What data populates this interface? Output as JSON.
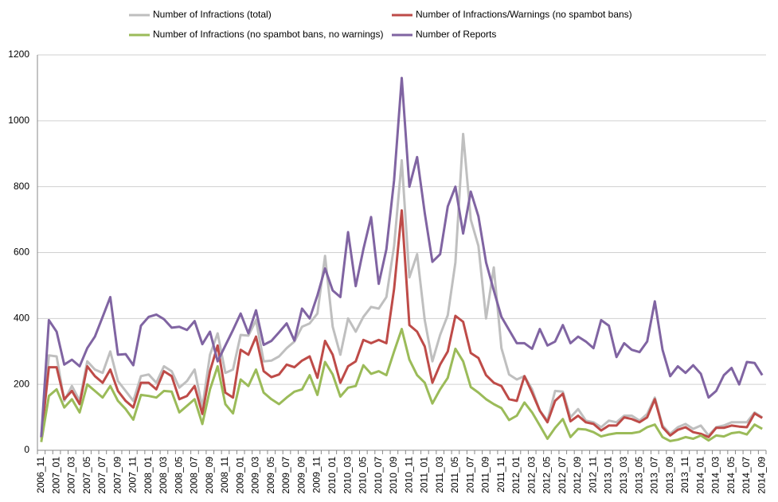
{
  "chart_data": {
    "type": "line",
    "categories": [
      "2006_11",
      null,
      "2007_01",
      null,
      "2007_03",
      null,
      "2007_05",
      null,
      "2007_07",
      null,
      "2007_09",
      null,
      "2007_11",
      null,
      "2008_01",
      null,
      "2008_03",
      null,
      "2008_05",
      null,
      "2008_07",
      null,
      "2008_09",
      null,
      "2008_11",
      null,
      "2009_01",
      null,
      "2009_03",
      null,
      "2009_05",
      null,
      "2009_07",
      null,
      "2009_09",
      null,
      "2009_11",
      null,
      "2010_01",
      null,
      "2010_03",
      null,
      "2010_05",
      null,
      "2010_07",
      null,
      "2010_09",
      null,
      "2010_11",
      null,
      "2011_01",
      null,
      "2011_03",
      null,
      "2011_05",
      null,
      "2011_07",
      null,
      "2011_09",
      null,
      "2011_11",
      null,
      "2012_01",
      null,
      "2012_03",
      null,
      "2012_05",
      null,
      "2012_07",
      null,
      "2012_09",
      null,
      "2012_11",
      null,
      "2013_01",
      null,
      "2013_03",
      null,
      "2013_05",
      null,
      "2013_07",
      null,
      "2013_09",
      null,
      "2013_11",
      null,
      "2014_01",
      null,
      "2014_03",
      null,
      "2014_05",
      null,
      "2014_07",
      null,
      "2014_09"
    ],
    "series": [
      {
        "name": "Number of Infractions (total)",
        "color": "#bfbfbf",
        "values": [
          35,
          288,
          285,
          150,
          195,
          150,
          270,
          245,
          235,
          300,
          210,
          180,
          150,
          225,
          230,
          205,
          255,
          240,
          190,
          210,
          245,
          130,
          290,
          355,
          235,
          245,
          350,
          348,
          395,
          270,
          272,
          285,
          310,
          330,
          375,
          385,
          415,
          590,
          375,
          290,
          400,
          360,
          405,
          435,
          430,
          465,
          620,
          880,
          525,
          595,
          395,
          270,
          350,
          410,
          570,
          960,
          700,
          620,
          400,
          555,
          310,
          230,
          215,
          225,
          185,
          120,
          90,
          180,
          178,
          100,
          125,
          90,
          85,
          70,
          90,
          85,
          105,
          105,
          90,
          110,
          160,
          75,
          50,
          70,
          80,
          65,
          75,
          45,
          70,
          75,
          85,
          85,
          85,
          115,
          100
        ]
      },
      {
        "name": "Number of Infractions/Warnings (no spambot bans)",
        "color": "#be4b48",
        "values": [
          40,
          252,
          252,
          155,
          180,
          140,
          255,
          225,
          205,
          245,
          180,
          150,
          130,
          205,
          205,
          185,
          240,
          225,
          155,
          165,
          195,
          110,
          240,
          318,
          175,
          160,
          305,
          290,
          345,
          240,
          222,
          230,
          260,
          252,
          272,
          285,
          220,
          332,
          290,
          205,
          255,
          270,
          335,
          325,
          335,
          325,
          490,
          728,
          380,
          360,
          315,
          205,
          260,
          300,
          408,
          390,
          295,
          280,
          228,
          205,
          195,
          155,
          150,
          225,
          175,
          120,
          85,
          150,
          172,
          88,
          105,
          85,
          80,
          60,
          75,
          75,
          100,
          95,
          85,
          100,
          155,
          70,
          45,
          62,
          70,
          55,
          50,
          40,
          68,
          68,
          75,
          72,
          70,
          112,
          98
        ]
      },
      {
        "name": "Number of Infractions (no spambot bans, no warnings)",
        "color": "#9bbb59",
        "values": [
          25,
          165,
          185,
          130,
          155,
          115,
          200,
          180,
          160,
          195,
          150,
          125,
          93,
          168,
          165,
          160,
          180,
          178,
          115,
          135,
          155,
          80,
          185,
          255,
          140,
          112,
          215,
          195,
          245,
          175,
          155,
          140,
          160,
          178,
          185,
          228,
          168,
          268,
          230,
          163,
          190,
          195,
          258,
          232,
          240,
          228,
          300,
          368,
          275,
          228,
          205,
          142,
          185,
          220,
          308,
          270,
          192,
          175,
          155,
          140,
          128,
          92,
          105,
          145,
          115,
          75,
          35,
          68,
          95,
          40,
          65,
          63,
          55,
          42,
          48,
          52,
          52,
          52,
          56,
          70,
          78,
          40,
          28,
          32,
          40,
          35,
          45,
          30,
          45,
          42,
          52,
          55,
          48,
          78,
          65
        ]
      },
      {
        "name": "Number of Reports",
        "color": "#8064a2",
        "values": [
          40,
          395,
          360,
          260,
          275,
          255,
          310,
          345,
          405,
          465,
          290,
          292,
          258,
          378,
          405,
          412,
          398,
          372,
          375,
          365,
          392,
          322,
          360,
          270,
          318,
          365,
          415,
          355,
          425,
          320,
          332,
          358,
          385,
          333,
          430,
          400,
          470,
          552,
          485,
          465,
          662,
          498,
          610,
          708,
          505,
          610,
          820,
          1130,
          800,
          890,
          720,
          572,
          595,
          740,
          800,
          658,
          785,
          710,
          570,
          485,
          405,
          365,
          325,
          325,
          308,
          368,
          318,
          330,
          380,
          325,
          345,
          330,
          310,
          395,
          378,
          283,
          325,
          305,
          298,
          330,
          452,
          305,
          225,
          255,
          235,
          258,
          232,
          160,
          180,
          228,
          250,
          200,
          268,
          265,
          228
        ]
      }
    ],
    "ylim": [
      0,
      1200
    ],
    "yticks": [
      0,
      200,
      400,
      600,
      800,
      1000,
      1200
    ],
    "grid": true,
    "legend": "top"
  }
}
